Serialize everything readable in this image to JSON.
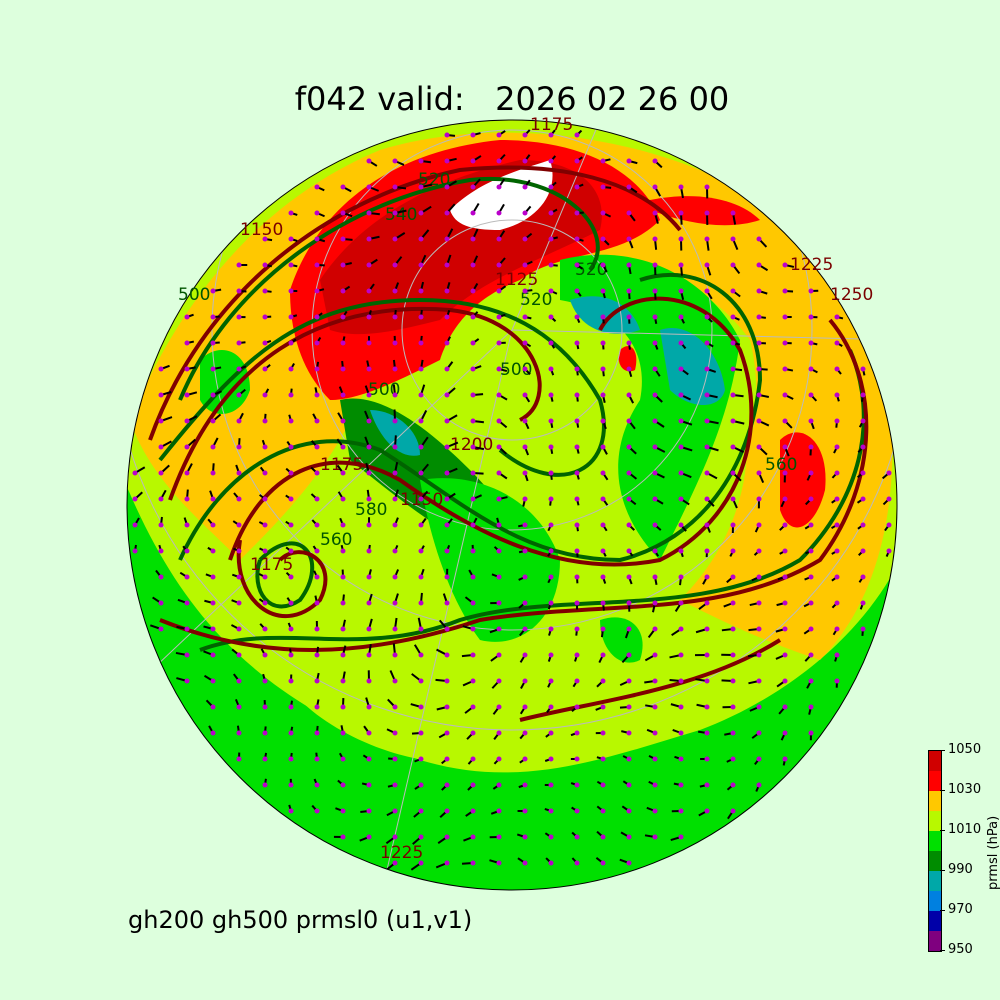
{
  "title": "f042 valid:   2026 02 26 00",
  "subtitle": "gh200 gh500 prmsl0 (u1,v1)",
  "colorbar": {
    "label": "prmsl (hPa)",
    "ticks": [
      "950",
      "970",
      "990",
      "1010",
      "1030",
      "1050"
    ],
    "levels": [
      950,
      960,
      970,
      980,
      990,
      1000,
      1010,
      1020,
      1030,
      1040,
      1050
    ],
    "colors": [
      "#7f007f",
      "#0000a8",
      "#0080e0",
      "#00a8a8",
      "#008c00",
      "#00e000",
      "#b8f800",
      "#ffc800",
      "#ff0000",
      "#d00000"
    ]
  },
  "contours": {
    "gh200_color": "#800000",
    "gh500_color": "#006400",
    "gh200_labels": [
      "1125",
      "1150",
      "1175",
      "1200",
      "1225",
      "1250",
      "1225",
      "1175",
      "1150",
      "1175"
    ],
    "gh500_labels": [
      "520",
      "540",
      "500",
      "520",
      "520",
      "560",
      "500",
      "560",
      "580",
      "500"
    ]
  },
  "wind_vectors": {
    "marker_color": "#bb00cc",
    "shaft_color": "#000000"
  }
}
